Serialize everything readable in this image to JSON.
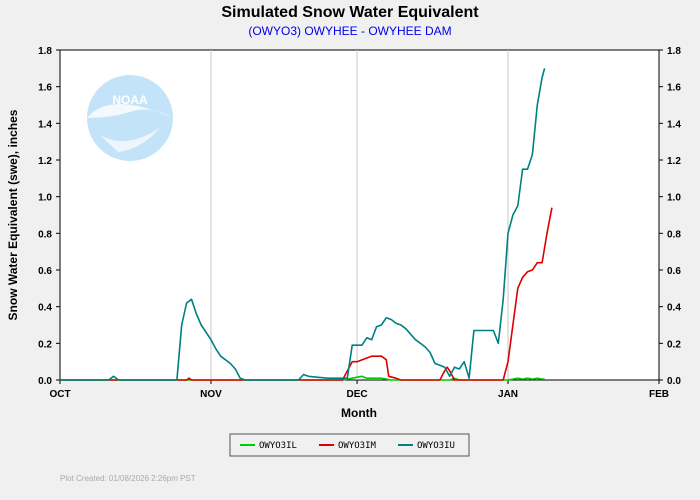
{
  "chart_data": {
    "type": "line",
    "title": "Simulated Snow Water Equivalent",
    "subtitle": "(OWYO3) OWYHEE - OWYHEE DAM",
    "xlabel": "Month",
    "ylabel": "Snow Water Equivalent (swe),  inches",
    "x_tick_labels": [
      "OCT",
      "NOV",
      "DEC",
      "JAN",
      "FEB"
    ],
    "x_tick_days": [
      0,
      31,
      61,
      92,
      123
    ],
    "xlim_days": [
      0,
      123
    ],
    "ylim": [
      0,
      1.8
    ],
    "y_ticks": [
      "0.0",
      "0.2",
      "0.4",
      "0.6",
      "0.8",
      "1.0",
      "1.2",
      "1.4",
      "1.6",
      "1.8"
    ],
    "grid": "vertical at month boundaries",
    "legend_position": "bottom-center",
    "series": [
      {
        "name": "OWYO3IL",
        "color": "#00cc00",
        "points": [
          [
            0,
            0
          ],
          [
            58,
            0
          ],
          [
            60,
            0.01
          ],
          [
            62,
            0.02
          ],
          [
            63,
            0.01
          ],
          [
            66,
            0.01
          ],
          [
            68,
            0
          ],
          [
            80,
            0
          ],
          [
            81,
            0.01
          ],
          [
            82,
            0
          ],
          [
            92,
            0
          ],
          [
            93,
            0.005
          ],
          [
            94,
            0.01
          ],
          [
            95,
            0.005
          ],
          [
            96,
            0.01
          ],
          [
            97,
            0.005
          ],
          [
            98,
            0.01
          ],
          [
            99,
            0.005
          ],
          [
            99.5,
            0.005
          ]
        ]
      },
      {
        "name": "OWYO3IM",
        "color": "#dd0000",
        "points": [
          [
            0,
            0
          ],
          [
            26,
            0
          ],
          [
            26.5,
            0.01
          ],
          [
            27,
            0
          ],
          [
            58,
            0
          ],
          [
            60,
            0.1
          ],
          [
            61,
            0.1
          ],
          [
            63,
            0.12
          ],
          [
            64,
            0.13
          ],
          [
            66,
            0.13
          ],
          [
            67,
            0.11
          ],
          [
            67.5,
            0.02
          ],
          [
            69,
            0.01
          ],
          [
            70,
            0
          ],
          [
            78,
            0
          ],
          [
            79,
            0.05
          ],
          [
            79.5,
            0.07
          ],
          [
            80,
            0.05
          ],
          [
            81,
            0
          ],
          [
            85,
            0
          ],
          [
            91,
            0
          ],
          [
            92,
            0.1
          ],
          [
            93,
            0.3
          ],
          [
            94,
            0.5
          ],
          [
            95,
            0.56
          ],
          [
            96,
            0.59
          ],
          [
            97,
            0.6
          ],
          [
            98,
            0.64
          ],
          [
            99,
            0.64
          ],
          [
            100,
            0.8
          ],
          [
            101,
            0.94
          ]
        ]
      },
      {
        "name": "OWYO3IU",
        "color": "#008080",
        "points": [
          [
            0,
            0
          ],
          [
            10,
            0
          ],
          [
            11,
            0.02
          ],
          [
            12,
            0
          ],
          [
            24,
            0
          ],
          [
            25,
            0.3
          ],
          [
            26,
            0.42
          ],
          [
            27,
            0.44
          ],
          [
            28,
            0.36
          ],
          [
            29,
            0.3
          ],
          [
            31,
            0.22
          ],
          [
            32,
            0.17
          ],
          [
            33,
            0.13
          ],
          [
            35,
            0.09
          ],
          [
            36,
            0.06
          ],
          [
            37,
            0.01
          ],
          [
            38,
            0
          ],
          [
            49,
            0
          ],
          [
            50,
            0.03
          ],
          [
            51,
            0.02
          ],
          [
            53,
            0.015
          ],
          [
            55,
            0.01
          ],
          [
            59,
            0.01
          ],
          [
            60,
            0.19
          ],
          [
            61,
            0.19
          ],
          [
            62,
            0.19
          ],
          [
            63,
            0.23
          ],
          [
            64,
            0.22
          ],
          [
            65,
            0.29
          ],
          [
            66,
            0.3
          ],
          [
            67,
            0.34
          ],
          [
            68,
            0.33
          ],
          [
            69,
            0.31
          ],
          [
            70,
            0.3
          ],
          [
            71,
            0.28
          ],
          [
            72,
            0.25
          ],
          [
            73,
            0.22
          ],
          [
            74,
            0.2
          ],
          [
            75,
            0.18
          ],
          [
            76,
            0.15
          ],
          [
            77,
            0.09
          ],
          [
            78,
            0.08
          ],
          [
            79,
            0.07
          ],
          [
            80,
            0.02
          ],
          [
            81,
            0.07
          ],
          [
            82,
            0.06
          ],
          [
            83,
            0.1
          ],
          [
            84,
            0.01
          ],
          [
            85,
            0.27
          ],
          [
            86,
            0.27
          ],
          [
            87,
            0.27
          ],
          [
            88,
            0.27
          ],
          [
            89,
            0.27
          ],
          [
            90,
            0.2
          ],
          [
            91,
            0.44
          ],
          [
            92,
            0.8
          ],
          [
            93,
            0.9
          ],
          [
            94,
            0.95
          ],
          [
            95,
            1.15
          ],
          [
            96,
            1.15
          ],
          [
            97,
            1.23
          ],
          [
            98,
            1.5
          ],
          [
            99,
            1.65
          ],
          [
            99.5,
            1.7
          ]
        ]
      }
    ]
  },
  "footer": "Plot Created: 01/08/2026 2:26pm PST",
  "logo_text": "NOAA"
}
